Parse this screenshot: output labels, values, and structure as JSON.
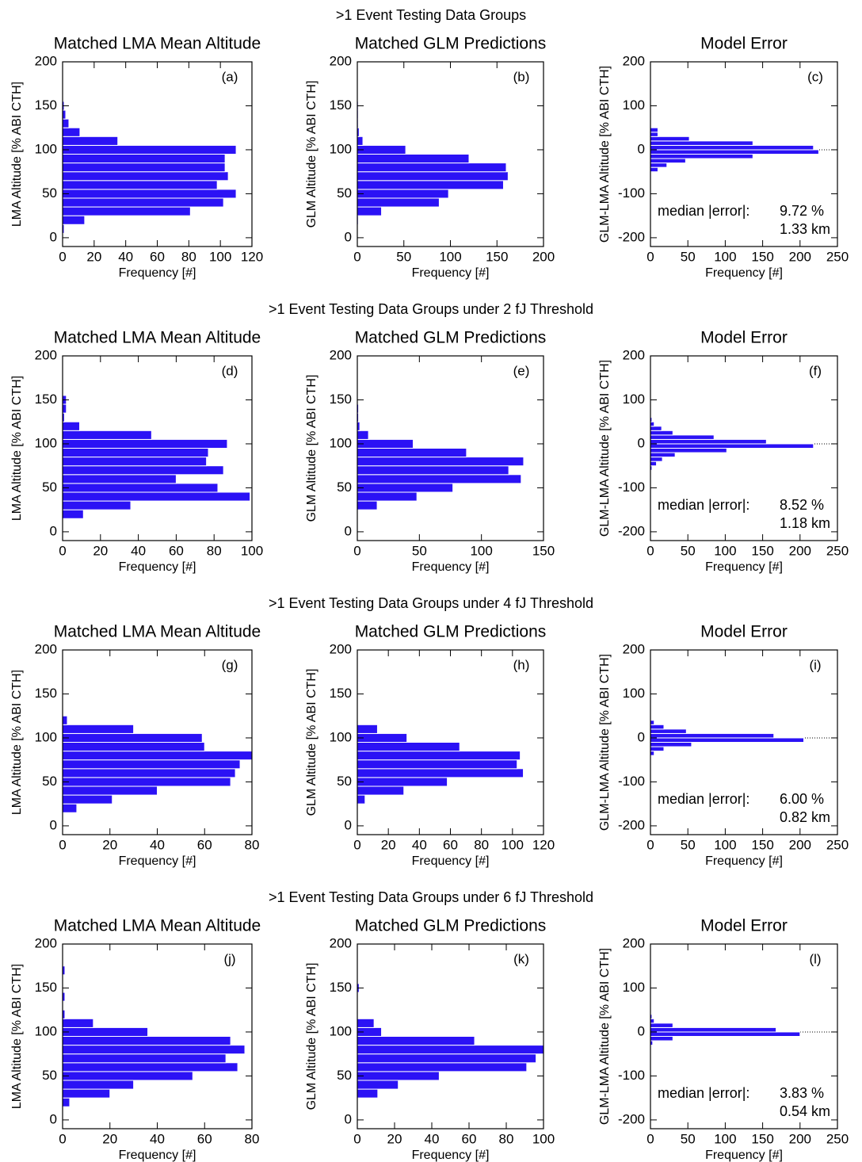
{
  "row_titles": [
    ">1 Event Testing Data Groups",
    ">1 Event Testing Data Groups under 2 fJ Threshold",
    ">1 Event Testing Data Groups under 4 fJ Threshold",
    ">1 Event Testing Data Groups under 6 fJ Threshold"
  ],
  "chart_data": [
    {
      "type": "histogram",
      "orientation": "horizontal",
      "title": "Matched LMA Mean Altitude",
      "panel_label": "(a)",
      "xlabel": "Frequency [#]",
      "ylabel": "LMA Altitude [% ABI CTH]",
      "color": "#2b12f5",
      "bins": [
        5,
        15,
        25,
        35,
        45,
        55,
        65,
        75,
        85,
        95,
        105,
        115,
        125,
        135,
        145,
        155
      ],
      "values": [
        1,
        14,
        81,
        102,
        110,
        98,
        105,
        103,
        103,
        110,
        35,
        11,
        4,
        2,
        1
      ],
      "xlim": [
        0,
        120
      ],
      "xticks": [
        0,
        20,
        40,
        60,
        80,
        100,
        120
      ],
      "ylim": [
        -10,
        200
      ],
      "yticks": [
        0,
        50,
        100,
        150,
        200
      ]
    },
    {
      "type": "histogram",
      "orientation": "horizontal",
      "title": "Matched GLM Predictions",
      "panel_label": "(b)",
      "xlabel": "Frequency [#]",
      "ylabel": "GLM Altitude [% ABI CTH]",
      "color": "#2b12f5",
      "bins": [
        15,
        25,
        35,
        45,
        55,
        65,
        75,
        85,
        95,
        105,
        115,
        125,
        135,
        145,
        155
      ],
      "values": [
        1,
        26,
        88,
        98,
        157,
        162,
        160,
        120,
        52,
        6,
        2,
        1,
        1,
        1
      ],
      "xlim": [
        0,
        200
      ],
      "xticks": [
        0,
        50,
        100,
        150,
        200
      ],
      "ylim": [
        -10,
        200
      ],
      "yticks": [
        0,
        50,
        100,
        150,
        200
      ]
    },
    {
      "type": "histogram",
      "orientation": "horizontal",
      "title": "Model Error",
      "panel_label": "(c)",
      "xlabel": "Frequency [#]",
      "ylabel": "GLM-LMA Altitude [% ABI CTH]",
      "color": "#2b12f5",
      "bins": [
        -60,
        -50,
        -40,
        -30,
        -20,
        -10,
        0,
        10,
        20,
        30,
        40,
        50
      ],
      "values": [
        1,
        10,
        22,
        47,
        137,
        225,
        218,
        137,
        52,
        10,
        10
      ],
      "xlim": [
        0,
        250
      ],
      "xticks": [
        0,
        50,
        100,
        150,
        200,
        250
      ],
      "ylim": [
        -220,
        200
      ],
      "yticks": [
        -200,
        -100,
        0,
        100,
        200
      ],
      "zero_line": true,
      "annotations": [
        "median |error|:",
        "9.72 %",
        "1.33 km"
      ]
    },
    {
      "type": "histogram",
      "orientation": "horizontal",
      "title": "Matched LMA Mean Altitude",
      "panel_label": "(d)",
      "xlabel": "Frequency [#]",
      "ylabel": "LMA Altitude [% ABI CTH]",
      "color": "#2b12f5",
      "bins": [
        15,
        25,
        35,
        45,
        55,
        65,
        75,
        85,
        95,
        105,
        115,
        125,
        135,
        145,
        155
      ],
      "values": [
        11,
        36,
        99,
        82,
        60,
        85,
        76,
        77,
        87,
        47,
        9,
        1,
        2,
        2
      ],
      "xlim": [
        0,
        100
      ],
      "xticks": [
        0,
        20,
        40,
        60,
        80,
        100
      ],
      "ylim": [
        -10,
        200
      ],
      "yticks": [
        0,
        50,
        100,
        150,
        200
      ]
    },
    {
      "type": "histogram",
      "orientation": "horizontal",
      "title": "Matched GLM Predictions",
      "panel_label": "(e)",
      "xlabel": "Frequency [#]",
      "ylabel": "GLM Altitude [% ABI CTH]",
      "color": "#2b12f5",
      "bins": [
        25,
        35,
        45,
        55,
        65,
        75,
        85,
        95,
        105,
        115,
        125,
        135,
        145
      ],
      "values": [
        16,
        48,
        77,
        132,
        122,
        134,
        88,
        45,
        9,
        2,
        1,
        1
      ],
      "xlim": [
        0,
        150
      ],
      "xticks": [
        0,
        50,
        100,
        150
      ],
      "ylim": [
        -10,
        200
      ],
      "yticks": [
        0,
        50,
        100,
        150,
        200
      ]
    },
    {
      "type": "histogram",
      "orientation": "horizontal",
      "title": "Model Error",
      "panel_label": "(f)",
      "xlabel": "Frequency [#]",
      "ylabel": "GLM-LMA Altitude [% ABI CTH]",
      "color": "#2b12f5",
      "bins": [
        -70,
        -60,
        -50,
        -40,
        -30,
        -20,
        -10,
        0,
        10,
        20,
        30,
        40,
        50,
        60
      ],
      "values": [
        1,
        2,
        8,
        16,
        33,
        102,
        218,
        155,
        85,
        30,
        15,
        5,
        2
      ],
      "xlim": [
        0,
        250
      ],
      "xticks": [
        0,
        50,
        100,
        150,
        200,
        250
      ],
      "ylim": [
        -220,
        200
      ],
      "yticks": [
        -200,
        -100,
        0,
        100,
        200
      ],
      "zero_line": true,
      "annotations": [
        "median |error|:",
        "8.52 %",
        "1.18 km"
      ]
    },
    {
      "type": "histogram",
      "orientation": "horizontal",
      "title": "Matched LMA Mean Altitude",
      "panel_label": "(g)",
      "xlabel": "Frequency [#]",
      "ylabel": "LMA Altitude [% ABI CTH]",
      "color": "#2b12f5",
      "bins": [
        15,
        25,
        35,
        45,
        55,
        65,
        75,
        85,
        95,
        105,
        115,
        125
      ],
      "values": [
        6,
        21,
        40,
        71,
        73,
        75,
        80,
        60,
        59,
        30,
        2
      ],
      "xlim": [
        0,
        80
      ],
      "xticks": [
        0,
        20,
        40,
        60,
        80
      ],
      "ylim": [
        -10,
        200
      ],
      "yticks": [
        0,
        50,
        100,
        150,
        200
      ]
    },
    {
      "type": "histogram",
      "orientation": "horizontal",
      "title": "Matched GLM Predictions",
      "panel_label": "(h)",
      "xlabel": "Frequency [#]",
      "ylabel": "GLM Altitude [% ABI CTH]",
      "color": "#2b12f5",
      "bins": [
        25,
        35,
        45,
        55,
        65,
        75,
        85,
        95,
        105,
        115
      ],
      "values": [
        5,
        30,
        58,
        107,
        103,
        105,
        66,
        32,
        13
      ],
      "xlim": [
        0,
        120
      ],
      "xticks": [
        0,
        20,
        40,
        60,
        80,
        100,
        120
      ],
      "ylim": [
        -10,
        200
      ],
      "yticks": [
        0,
        50,
        100,
        150,
        200
      ]
    },
    {
      "type": "histogram",
      "orientation": "horizontal",
      "title": "Model Error",
      "panel_label": "(i)",
      "xlabel": "Frequency [#]",
      "ylabel": "GLM-LMA Altitude [% ABI CTH]",
      "color": "#2b12f5",
      "bins": [
        -50,
        -40,
        -30,
        -20,
        -10,
        0,
        10,
        20,
        30,
        40
      ],
      "values": [
        1,
        5,
        18,
        55,
        205,
        165,
        48,
        18,
        5
      ],
      "xlim": [
        0,
        250
      ],
      "xticks": [
        0,
        50,
        100,
        150,
        200,
        250
      ],
      "ylim": [
        -220,
        200
      ],
      "yticks": [
        -200,
        -100,
        0,
        100,
        200
      ],
      "zero_line": true,
      "annotations": [
        "median |error|:",
        "6.00 %",
        "0.82 km"
      ]
    },
    {
      "type": "histogram",
      "orientation": "horizontal",
      "title": "Matched LMA Mean Altitude",
      "panel_label": "(j)",
      "xlabel": "Frequency [#]",
      "ylabel": "LMA Altitude [% ABI CTH]",
      "color": "#2b12f5",
      "bins": [
        15,
        25,
        35,
        45,
        55,
        65,
        75,
        85,
        95,
        105,
        115,
        125,
        135,
        145,
        155,
        165,
        175
      ],
      "values": [
        3,
        20,
        30,
        55,
        74,
        69,
        77,
        71,
        36,
        13,
        1,
        0,
        1,
        0,
        0,
        1
      ],
      "xlim": [
        0,
        80
      ],
      "xticks": [
        0,
        20,
        40,
        60,
        80
      ],
      "ylim": [
        -10,
        200
      ],
      "yticks": [
        0,
        50,
        100,
        150,
        200
      ]
    },
    {
      "type": "histogram",
      "orientation": "horizontal",
      "title": "Matched GLM Predictions",
      "panel_label": "(k)",
      "xlabel": "Frequency [#]",
      "ylabel": "GLM Altitude [% ABI CTH]",
      "color": "#2b12f5",
      "bins": [
        25,
        35,
        45,
        55,
        65,
        75,
        85,
        95,
        105,
        115,
        125,
        135,
        145,
        155
      ],
      "values": [
        11,
        22,
        44,
        91,
        96,
        100,
        63,
        13,
        9,
        0,
        0,
        0,
        1
      ],
      "xlim": [
        0,
        100
      ],
      "xticks": [
        0,
        20,
        40,
        60,
        80,
        100
      ],
      "ylim": [
        -10,
        200
      ],
      "yticks": [
        0,
        50,
        100,
        150,
        200
      ]
    },
    {
      "type": "histogram",
      "orientation": "horizontal",
      "title": "Model Error",
      "panel_label": "(l)",
      "xlabel": "Frequency [#]",
      "ylabel": "GLM-LMA Altitude [% ABI CTH]",
      "color": "#2b12f5",
      "bins": [
        -30,
        -20,
        -10,
        0,
        10,
        20,
        30,
        40
      ],
      "values": [
        3,
        30,
        200,
        168,
        30,
        5,
        2
      ],
      "xlim": [
        0,
        250
      ],
      "xticks": [
        0,
        50,
        100,
        150,
        200,
        250
      ],
      "ylim": [
        -220,
        200
      ],
      "yticks": [
        -200,
        -100,
        0,
        100,
        200
      ],
      "zero_line": true,
      "annotations": [
        "median |error|:",
        "3.83 %",
        "0.54 km"
      ]
    }
  ]
}
